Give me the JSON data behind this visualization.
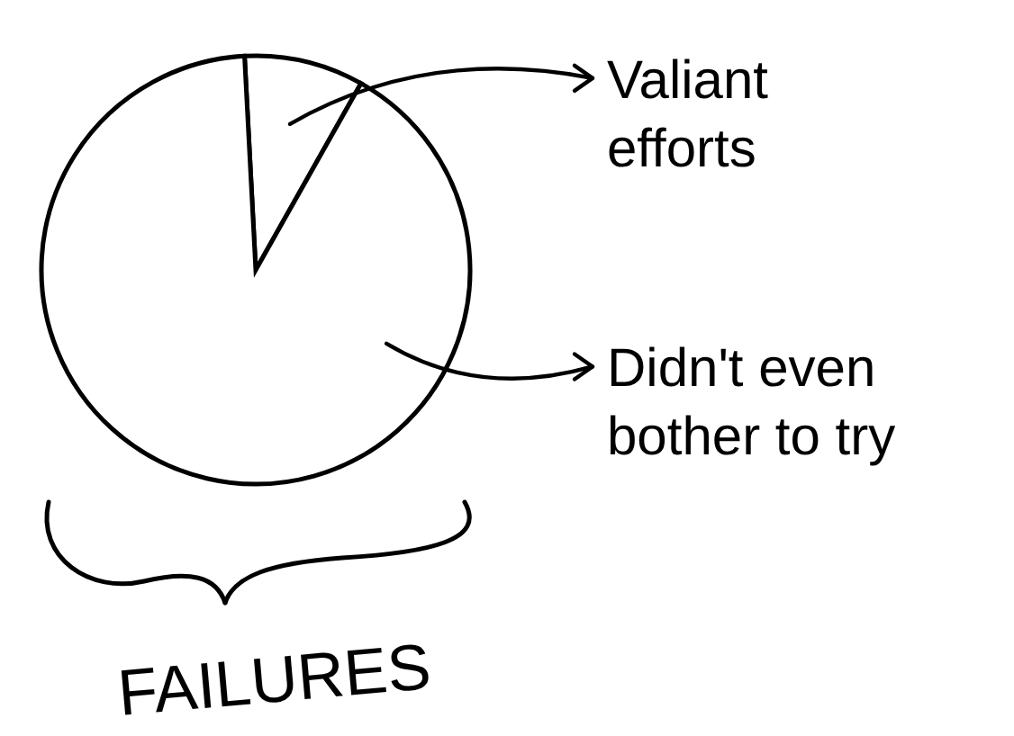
{
  "chart_data": {
    "type": "pie",
    "title": "FAILURES",
    "categories": [
      "Valiant efforts",
      "Didn't even bother to try"
    ],
    "values": [
      9,
      91
    ],
    "colors": [
      "#ffffff",
      "#ffffff"
    ],
    "legend": "right"
  }
}
